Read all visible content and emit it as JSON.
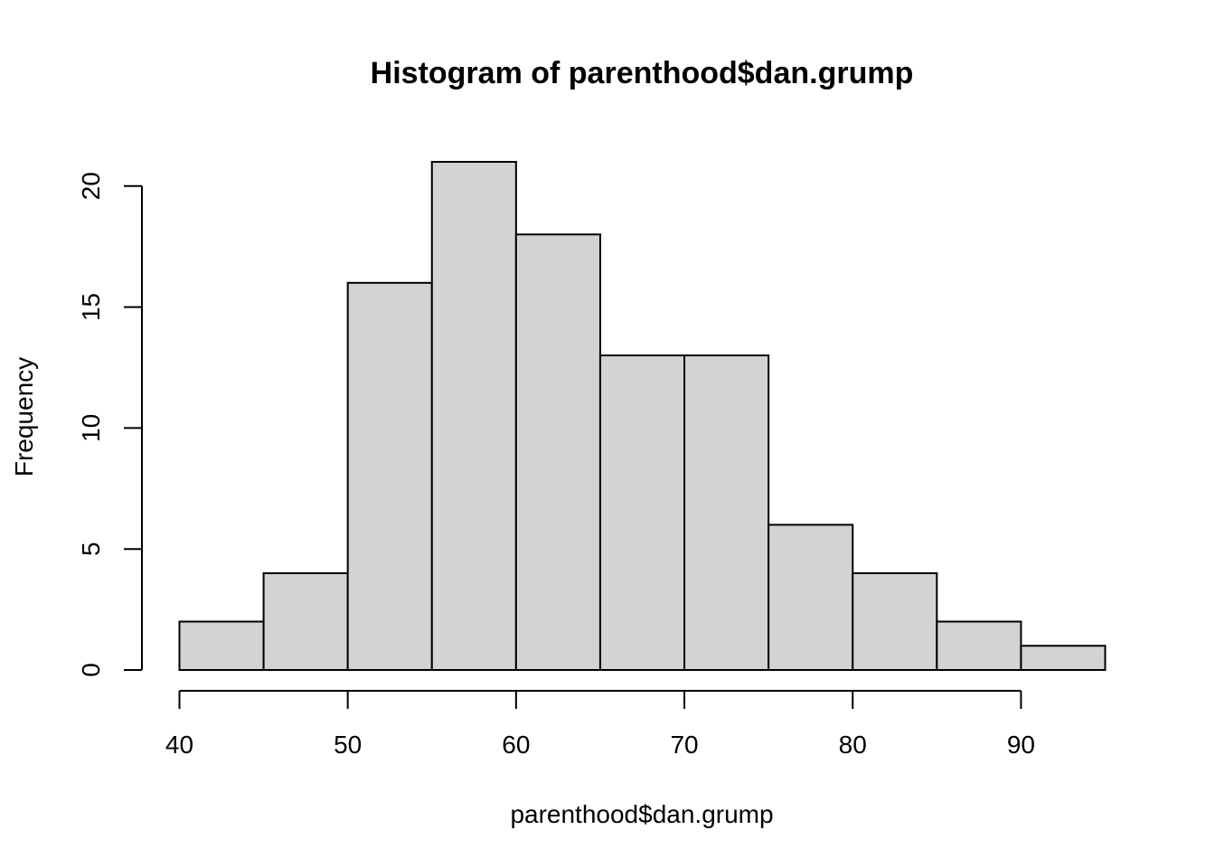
{
  "chart_data": {
    "type": "bar",
    "subtype": "histogram",
    "title": "Histogram of parenthood$dan.grump",
    "xlabel": "parenthood$dan.grump",
    "ylabel": "Frequency",
    "bins": [
      {
        "from": 40,
        "to": 45,
        "count": 2
      },
      {
        "from": 45,
        "to": 50,
        "count": 4
      },
      {
        "from": 50,
        "to": 55,
        "count": 16
      },
      {
        "from": 55,
        "to": 60,
        "count": 21
      },
      {
        "from": 60,
        "to": 65,
        "count": 18
      },
      {
        "from": 65,
        "to": 70,
        "count": 13
      },
      {
        "from": 70,
        "to": 75,
        "count": 13
      },
      {
        "from": 75,
        "to": 80,
        "count": 6
      },
      {
        "from": 80,
        "to": 85,
        "count": 4
      },
      {
        "from": 85,
        "to": 90,
        "count": 2
      },
      {
        "from": 90,
        "to": 95,
        "count": 1
      }
    ],
    "xlim": [
      40,
      95
    ],
    "ylim": [
      0,
      21
    ],
    "x_ticks": [
      40,
      50,
      60,
      70,
      80,
      90
    ],
    "y_ticks": [
      0,
      5,
      10,
      15,
      20
    ],
    "bar_color": "#d3d3d3",
    "grid": false,
    "legend": "none"
  }
}
